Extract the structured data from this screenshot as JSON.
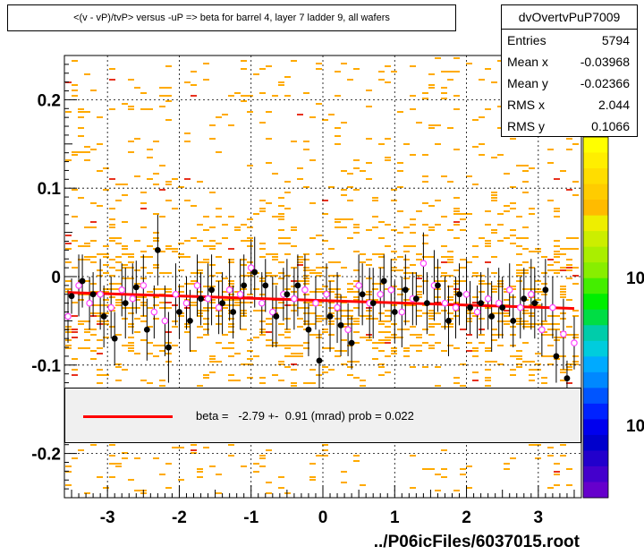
{
  "title": "<(v - vP)/tvP> versus  -uP => beta for barrel 4, layer 7 ladder 9, all wafers",
  "stats": {
    "name": "dvOvertvPuP7009",
    "rows": [
      {
        "label": "Entries",
        "value": "5794"
      },
      {
        "label": "Mean x",
        "value": "-0.03968"
      },
      {
        "label": "Mean y",
        "value": "-0.02366"
      },
      {
        "label": "RMS x",
        "value": "2.044"
      },
      {
        "label": "RMS y",
        "value": "0.1066"
      }
    ]
  },
  "fit_legend": {
    "text": "beta =   -2.79 +-  0.91 (mrad) prob = 0.022",
    "line_color": "#ff0000"
  },
  "footer": "../P06icFiles/6037015.root",
  "colors": {
    "histogram_orange": "#ffaa00",
    "histogram_red": "#e8311e",
    "black_points": "#000000",
    "open_points": "#ff44ff",
    "fit": "#ff0000"
  },
  "chart_data": {
    "type": "scatter",
    "title": "<(v - vP)/tvP> versus  -uP => beta for barrel 4, layer 7 ladder 9, all wafers",
    "xlabel": "",
    "ylabel": "",
    "xlim": [
      -3.6,
      3.6
    ],
    "ylim": [
      -0.25,
      0.25
    ],
    "x_ticks": [
      -3,
      -2,
      -1,
      0,
      1,
      2,
      3
    ],
    "y_ticks": [
      -0.2,
      -0.1,
      0,
      0.1,
      0.2
    ],
    "x_tick_labels": [
      "-3",
      "-2",
      "-1",
      "0",
      "1",
      "2",
      "3"
    ],
    "y_tick_labels": [
      "-0.2",
      "-0.1",
      "0",
      "0.1",
      "0.2"
    ],
    "grid": true,
    "colorbar_labels": [
      "10",
      "10"
    ],
    "fit_line": {
      "x": [
        -3.55,
        3.5
      ],
      "y": [
        -0.018,
        -0.036
      ]
    },
    "profile_filled": {
      "x": [
        -3.5,
        -3.35,
        -3.2,
        -3.05,
        -2.9,
        -2.75,
        -2.6,
        -2.45,
        -2.3,
        -2.15,
        -2.0,
        -1.85,
        -1.7,
        -1.55,
        -1.4,
        -1.25,
        -1.1,
        -0.95,
        -0.8,
        -0.65,
        -0.5,
        -0.35,
        -0.2,
        -0.05,
        0.1,
        0.25,
        0.4,
        0.55,
        0.7,
        0.85,
        1.0,
        1.15,
        1.3,
        1.45,
        1.6,
        1.75,
        1.9,
        2.05,
        2.2,
        2.35,
        2.5,
        2.65,
        2.8,
        2.95,
        3.1,
        3.25,
        3.4
      ],
      "y": [
        -0.022,
        -0.005,
        -0.02,
        -0.045,
        -0.07,
        -0.03,
        -0.012,
        -0.06,
        0.03,
        -0.08,
        -0.04,
        -0.05,
        -0.025,
        -0.015,
        -0.03,
        -0.04,
        -0.01,
        0.005,
        -0.01,
        -0.045,
        -0.02,
        -0.01,
        -0.06,
        -0.095,
        -0.045,
        -0.055,
        -0.075,
        -0.02,
        -0.03,
        -0.005,
        -0.04,
        -0.015,
        -0.025,
        -0.03,
        -0.01,
        -0.05,
        -0.02,
        -0.035,
        -0.03,
        -0.045,
        -0.035,
        -0.05,
        -0.025,
        -0.03,
        -0.015,
        -0.09,
        -0.115
      ],
      "err": [
        0.02,
        0.03,
        0.025,
        0.035,
        0.03,
        0.04,
        0.03,
        0.035,
        0.04,
        0.04,
        0.03,
        0.035,
        0.03,
        0.04,
        0.035,
        0.03,
        0.035,
        0.04,
        0.03,
        0.035,
        0.04,
        0.035,
        0.03,
        0.035,
        0.04,
        0.035,
        0.03,
        0.035,
        0.04,
        0.03,
        0.035,
        0.04,
        0.03,
        0.035,
        0.03,
        0.04,
        0.035,
        0.03,
        0.035,
        0.04,
        0.035,
        0.03,
        0.035,
        0.04,
        0.035,
        0.03,
        0.02
      ]
    },
    "profile_open": {
      "x": [
        -3.55,
        -3.4,
        -3.25,
        -3.1,
        -2.95,
        -2.8,
        -2.65,
        -2.5,
        -2.35,
        -2.2,
        -2.05,
        -1.9,
        -1.75,
        -1.6,
        -1.45,
        -1.3,
        -1.15,
        -1.0,
        -0.85,
        -0.7,
        -0.55,
        -0.4,
        -0.25,
        -0.1,
        0.05,
        0.2,
        0.35,
        0.5,
        0.65,
        0.8,
        0.95,
        1.1,
        1.25,
        1.4,
        1.55,
        1.7,
        1.85,
        2.0,
        2.15,
        2.3,
        2.45,
        2.6,
        2.75,
        2.9,
        3.05,
        3.2,
        3.35,
        3.5
      ],
      "y": [
        -0.045,
        -0.01,
        -0.03,
        -0.02,
        -0.035,
        -0.015,
        -0.025,
        -0.01,
        -0.04,
        -0.05,
        -0.02,
        -0.03,
        -0.01,
        -0.025,
        -0.035,
        -0.015,
        -0.02,
        0.01,
        -0.03,
        -0.04,
        -0.02,
        -0.025,
        -0.015,
        -0.03,
        -0.02,
        -0.035,
        -0.06,
        -0.01,
        -0.03,
        -0.02,
        -0.015,
        -0.04,
        -0.025,
        0.015,
        -0.01,
        -0.03,
        -0.035,
        -0.02,
        -0.04,
        -0.025,
        -0.03,
        -0.015,
        -0.035,
        -0.02,
        -0.06,
        -0.035,
        -0.065,
        -0.075
      ],
      "err": [
        0.03,
        0.035,
        0.03,
        0.04,
        0.035,
        0.03,
        0.04,
        0.035,
        0.03,
        0.04,
        0.035,
        0.03,
        0.035,
        0.04,
        0.03,
        0.035,
        0.04,
        0.03,
        0.035,
        0.04,
        0.03,
        0.035,
        0.04,
        0.03,
        0.035,
        0.04,
        0.03,
        0.035,
        0.04,
        0.03,
        0.035,
        0.04,
        0.03,
        0.035,
        0.04,
        0.03,
        0.035,
        0.04,
        0.03,
        0.035,
        0.04,
        0.03,
        0.035,
        0.04,
        0.03,
        0.035,
        0.04,
        0.03
      ]
    }
  }
}
